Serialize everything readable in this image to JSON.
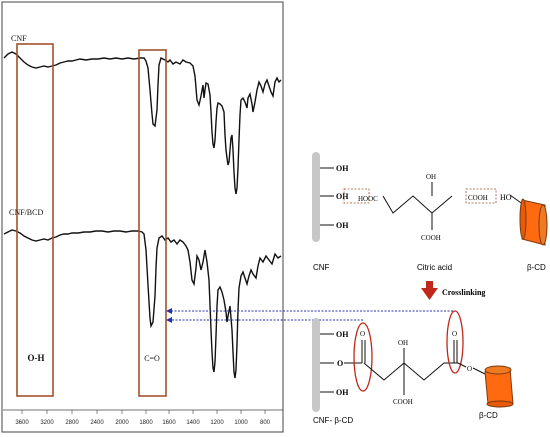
{
  "spectrum": {
    "sample_labels": {
      "top": "CNF",
      "bottom": "CNF/BCD"
    },
    "box_labels": {
      "oh": "O-H",
      "co": "C=O"
    },
    "x_ticks": [
      "3600",
      "3200",
      "2800",
      "2400",
      "2000",
      "1800",
      "1600",
      "1400",
      "1200",
      "1000",
      "800"
    ]
  },
  "scheme": {
    "top": {
      "oh": [
        "OH",
        "OH",
        "OH"
      ],
      "hooc": "HOOC",
      "oh_center": "OH",
      "cooh_bottom": "COOH",
      "cooh_right": "COOH",
      "ho": "HO",
      "cnf_label": "CNF",
      "citric_label": "Citric acid",
      "bcd_label": "β-CD"
    },
    "arrow_label": "Crosslinking",
    "bottom": {
      "oh_top": "OH",
      "o_mid": "O",
      "oh_bottom": "OH",
      "oh_center": "OH",
      "cooh": "COOH",
      "o_ring": "O",
      "cnf_bcd_label": "CNF- β-CD",
      "bcd_label": "β-CD"
    }
  },
  "colors": {
    "box": "#a0522d",
    "arrow": "#c0281c",
    "link": "#2233aa",
    "cup": "#ff6a10",
    "cup_dark": "#7a3a10",
    "rod": "#c7c7c7"
  }
}
